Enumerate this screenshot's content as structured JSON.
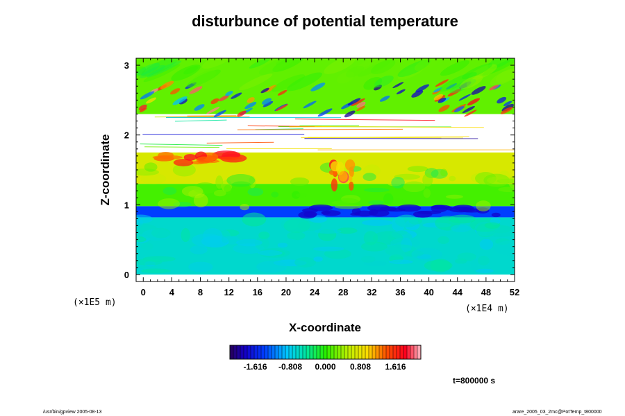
{
  "chart_data": {
    "type": "heatmap",
    "title": "disturbunce of potential temperature",
    "xlabel": "X-coordinate",
    "ylabel": "Z-coordinate",
    "x_unit": "(×1E4 m)",
    "y_unit": "(×1E5 m)",
    "xlim": [
      -1,
      52
    ],
    "ylim": [
      -0.1,
      3.1
    ],
    "x_ticks": [
      "0",
      "4",
      "8",
      "12",
      "16",
      "20",
      "24",
      "28",
      "32",
      "36",
      "40",
      "44",
      "48",
      "52"
    ],
    "x_tick_values": [
      0,
      4,
      8,
      12,
      16,
      20,
      24,
      28,
      32,
      36,
      40,
      44,
      48,
      52
    ],
    "y_ticks": [
      "0",
      "1",
      "2",
      "3"
    ],
    "y_tick_values": [
      0,
      1,
      2,
      3
    ],
    "colorbar": {
      "min": -2.2,
      "max": 2.2,
      "tick_labels": [
        "-1.616",
        "-0.808",
        "0.000",
        "0.808",
        "1.616"
      ],
      "tick_values": [
        -1.616,
        -0.808,
        0.0,
        0.808,
        1.616
      ]
    },
    "time_label": "t=800000 s",
    "bands": [
      {
        "z_from": 0.0,
        "z_to": 0.82,
        "description": "uniform cool layer",
        "value": -0.65
      },
      {
        "z_from": 0.82,
        "z_to": 0.98,
        "description": "strong negative anomaly strip",
        "value": -1.4
      },
      {
        "z_from": 0.98,
        "z_to": 1.3,
        "description": "transition",
        "value": 0.1
      },
      {
        "z_from": 1.3,
        "z_to": 1.75,
        "description": "warm layer",
        "value": 0.7
      },
      {
        "z_from": 1.75,
        "z_to": 2.3,
        "description": "out-of-range (blank)",
        "value": null
      },
      {
        "z_from": 2.3,
        "z_to": 3.1,
        "description": "gravity wave region",
        "value": 0.2
      }
    ]
  },
  "footer": {
    "left": "/usr/bin/gpview 2005-08-13",
    "right": "arare_2005_03_2mc@PotTemp_t800000"
  }
}
